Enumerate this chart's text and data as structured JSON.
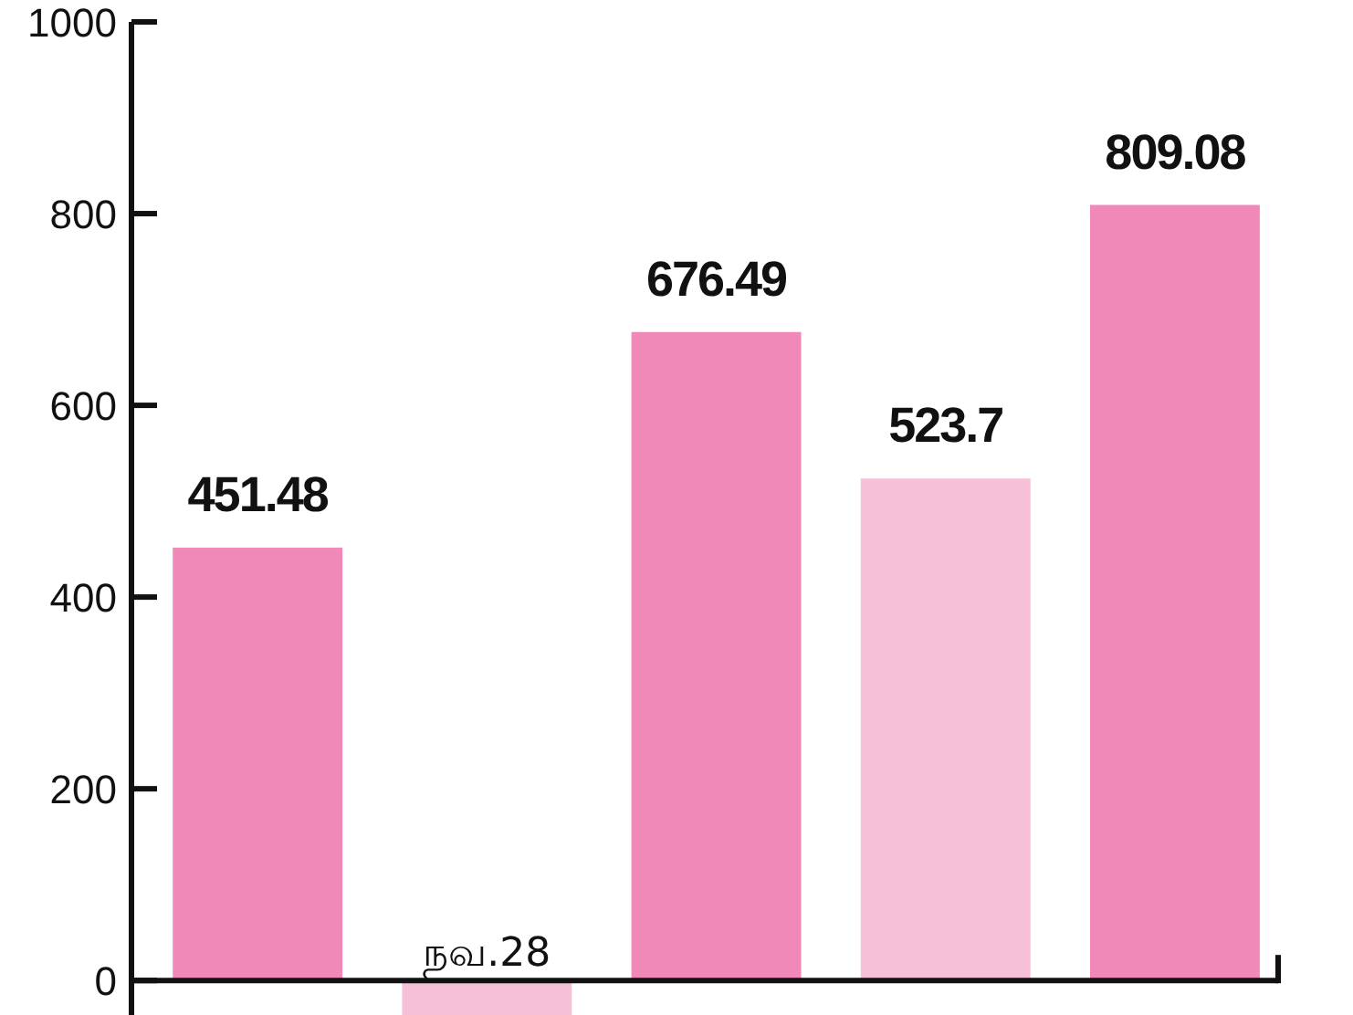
{
  "chart_data": {
    "type": "bar",
    "categories": [
      null,
      "நவ.28",
      null,
      null,
      null
    ],
    "values": [
      451.48,
      -36,
      676.49,
      523.7,
      809.08
    ],
    "colors": [
      "#f088b8",
      "#f7c0d9",
      "#f088b8",
      "#f7c0d9",
      "#f088b8"
    ],
    "value_labels": [
      "451.48",
      null,
      "676.49",
      "523.7",
      "809.08"
    ],
    "ylim": [
      -36,
      1000
    ],
    "yticks": [
      0,
      200,
      400,
      600,
      800,
      1000
    ]
  }
}
